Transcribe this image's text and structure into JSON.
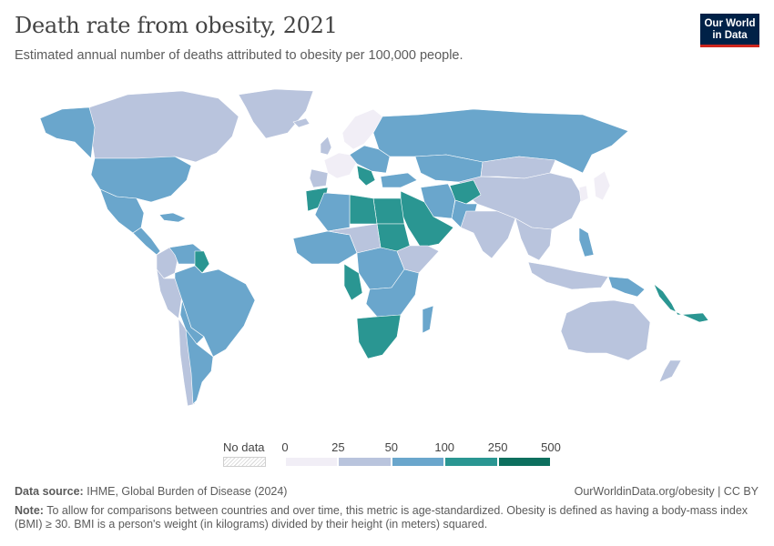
{
  "header": {
    "title": "Death rate from obesity, 2021",
    "subtitle": "Estimated annual number of deaths attributed to obesity per 100,000 people."
  },
  "logo": {
    "line1": "Our World",
    "line2": "in Data"
  },
  "legend": {
    "no_data_label": "No data",
    "ticks": [
      "0",
      "25",
      "50",
      "100",
      "250",
      "500"
    ],
    "bins": [
      {
        "from": 0,
        "to": 25,
        "color": "#f1eef6"
      },
      {
        "from": 25,
        "to": 50,
        "color": "#b9c4dd"
      },
      {
        "from": 50,
        "to": 100,
        "color": "#6aa6cc"
      },
      {
        "from": 100,
        "to": 250,
        "color": "#2a9692"
      },
      {
        "from": 250,
        "to": 500,
        "color": "#0d6f5e"
      }
    ],
    "no_data_color": "#e0e0e0"
  },
  "footer": {
    "source_label": "Data source:",
    "source_text": "IHME, Global Burden of Disease (2024)",
    "credit": "OurWorldinData.org/obesity | CC BY",
    "note_label": "Note:",
    "note_text": "To allow for comparisons between countries and over time, this metric is age-standardized. Obesity is defined as having a body-mass index (BMI) ≥ 30. BMI is a person's weight (in kilograms) divided by their height (in meters) squared."
  },
  "map_data": {
    "regions": [
      {
        "name": "Canada",
        "bin": "25-50"
      },
      {
        "name": "Greenland",
        "bin": "25-50"
      },
      {
        "name": "Alaska",
        "bin": "50-100"
      },
      {
        "name": "United States",
        "bin": "50-100"
      },
      {
        "name": "Mexico",
        "bin": "50-100"
      },
      {
        "name": "Central America",
        "bin": "50-100"
      },
      {
        "name": "Caribbean",
        "bin": "50-100"
      },
      {
        "name": "Colombia",
        "bin": "25-50"
      },
      {
        "name": "Venezuela",
        "bin": "50-100"
      },
      {
        "name": "Guyana",
        "bin": "100-250"
      },
      {
        "name": "Peru",
        "bin": "25-50"
      },
      {
        "name": "Brazil",
        "bin": "50-100"
      },
      {
        "name": "Bolivia",
        "bin": "50-100"
      },
      {
        "name": "Chile",
        "bin": "25-50"
      },
      {
        "name": "Argentina",
        "bin": "50-100"
      },
      {
        "name": "Iceland",
        "bin": "25-50"
      },
      {
        "name": "Scandinavia",
        "bin": "0-25"
      },
      {
        "name": "United Kingdom",
        "bin": "25-50"
      },
      {
        "name": "Western Europe",
        "bin": "0-25"
      },
      {
        "name": "Iberia",
        "bin": "25-50"
      },
      {
        "name": "Eastern Europe",
        "bin": "50-100"
      },
      {
        "name": "Balkans",
        "bin": "100-250"
      },
      {
        "name": "Russia",
        "bin": "50-100"
      },
      {
        "name": "Kazakhstan",
        "bin": "50-100"
      },
      {
        "name": "Mongolia",
        "bin": "25-50"
      },
      {
        "name": "China",
        "bin": "25-50"
      },
      {
        "name": "Korea",
        "bin": "0-25"
      },
      {
        "name": "Japan",
        "bin": "0-25"
      },
      {
        "name": "Turkey",
        "bin": "50-100"
      },
      {
        "name": "Iran",
        "bin": "50-100"
      },
      {
        "name": "Afghanistan",
        "bin": "100-250"
      },
      {
        "name": "Pakistan",
        "bin": "50-100"
      },
      {
        "name": "India",
        "bin": "25-50"
      },
      {
        "name": "Southeast Asia",
        "bin": "25-50"
      },
      {
        "name": "Philippines",
        "bin": "50-100"
      },
      {
        "name": "Indonesia",
        "bin": "25-50"
      },
      {
        "name": "Papua New Guinea",
        "bin": "50-100"
      },
      {
        "name": "Pacific Islands",
        "bin": "100-250"
      },
      {
        "name": "Arabian Peninsula",
        "bin": "100-250"
      },
      {
        "name": "Egypt",
        "bin": "100-250"
      },
      {
        "name": "Libya",
        "bin": "100-250"
      },
      {
        "name": "Morocco",
        "bin": "100-250"
      },
      {
        "name": "Algeria",
        "bin": "50-100"
      },
      {
        "name": "Sudan",
        "bin": "100-250"
      },
      {
        "name": "West Africa",
        "bin": "50-100"
      },
      {
        "name": "Sahel",
        "bin": "25-50"
      },
      {
        "name": "Horn of Africa",
        "bin": "25-50"
      },
      {
        "name": "Central Africa",
        "bin": "50-100"
      },
      {
        "name": "Gabon and Congo",
        "bin": "100-250"
      },
      {
        "name": "East Africa",
        "bin": "50-100"
      },
      {
        "name": "Southern Africa",
        "bin": "100-250"
      },
      {
        "name": "Madagascar",
        "bin": "50-100"
      },
      {
        "name": "Australia",
        "bin": "25-50"
      },
      {
        "name": "New Zealand",
        "bin": "25-50"
      }
    ]
  }
}
